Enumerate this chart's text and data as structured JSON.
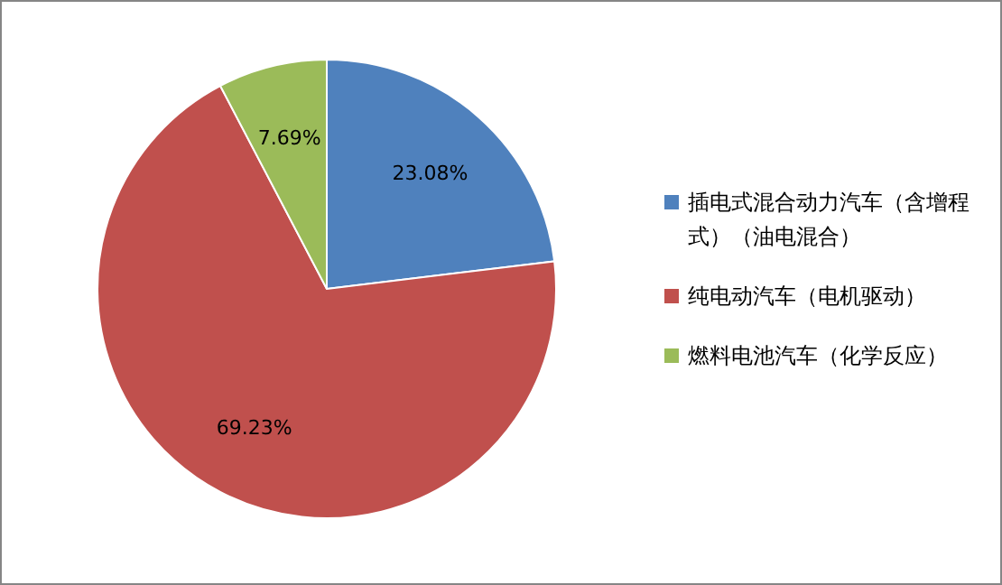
{
  "chart_data": {
    "type": "pie",
    "categories": [
      "插电式混合动力汽车（含增程式）（油电混合）",
      "纯电动汽车（电机驱动）",
      "燃料电池汽车（化学反应）"
    ],
    "values": [
      23.08,
      69.23,
      7.69
    ],
    "colors": [
      "#4f81bd",
      "#c0504d",
      "#9bbb59"
    ],
    "value_labels": [
      "23.08%",
      "69.23%",
      "7.69%"
    ],
    "legend": "right"
  }
}
